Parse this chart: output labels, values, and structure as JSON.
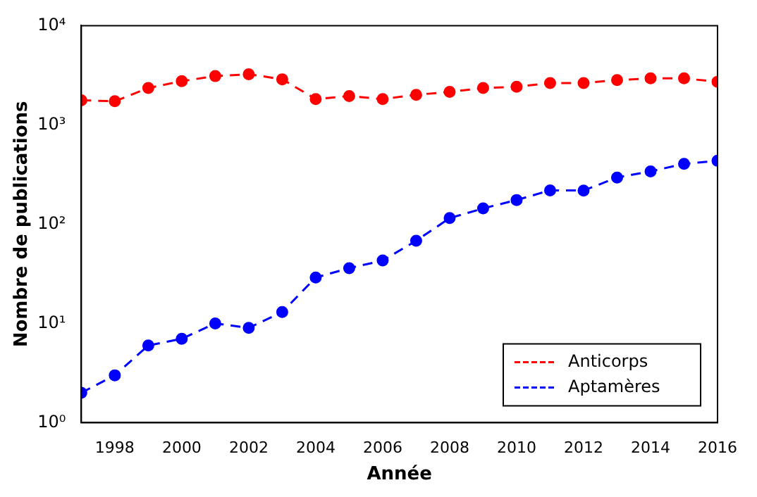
{
  "chart_data": {
    "type": "line",
    "xlabel": "Année",
    "ylabel": "Nombre de publications",
    "x": [
      1997,
      1998,
      1999,
      2000,
      2001,
      2002,
      2003,
      2004,
      2005,
      2006,
      2007,
      2008,
      2009,
      2010,
      2011,
      2012,
      2013,
      2014,
      2015,
      2016
    ],
    "series": [
      {
        "name": "Anticorps",
        "color": "#ff0000",
        "values": [
          1770,
          1730,
          2350,
          2760,
          3100,
          3240,
          2880,
          1820,
          1950,
          1820,
          2010,
          2150,
          2350,
          2420,
          2640,
          2640,
          2830,
          2940,
          2940,
          2720
        ]
      },
      {
        "name": "Aptamères",
        "color": "#0000ff",
        "values": [
          2,
          3,
          6,
          7,
          10,
          9,
          13,
          29,
          36,
          43,
          68,
          115,
          144,
          175,
          219,
          218,
          295,
          340,
          405,
          435
        ]
      }
    ],
    "xlim": [
      1997,
      2016
    ],
    "xticks": [
      1998,
      2000,
      2002,
      2004,
      2006,
      2008,
      2010,
      2012,
      2014,
      2016
    ],
    "ylim": [
      1,
      10000
    ],
    "yticks": [
      {
        "value": 1,
        "label": "10⁰"
      },
      {
        "value": 10,
        "label": "10¹"
      },
      {
        "value": 100,
        "label": "10²"
      },
      {
        "value": 1000,
        "label": "10³"
      },
      {
        "value": 10000,
        "label": "10⁴"
      }
    ],
    "log": "y",
    "grid": false,
    "legend": "bottom right",
    "marker": "circle",
    "line_style": "dashed"
  }
}
